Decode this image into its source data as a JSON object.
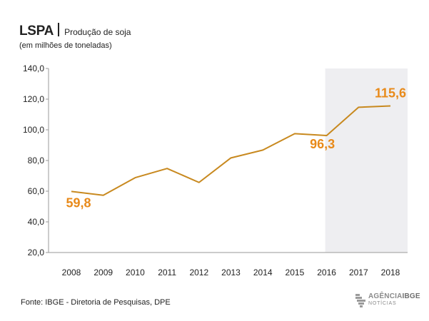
{
  "header": {
    "title": "LSPA",
    "subtitle": "Produção de soja",
    "unit": "(em milhões de toneladas)"
  },
  "footer": {
    "source": "Fonte: IBGE - Diretoria de Pesquisas, DPE"
  },
  "logo": {
    "name_light": "AGÊNCIA",
    "name_bold": "IBGE",
    "tagline": "NOTÍCIAS"
  },
  "colors": {
    "line": "#c8891f",
    "highlight_label": "#e88a1a",
    "highlight_band": "#eeeef1",
    "axis": "#999999"
  },
  "chart_data": {
    "type": "line",
    "categories": [
      "2008",
      "2009",
      "2010",
      "2011",
      "2012",
      "2013",
      "2014",
      "2015",
      "2016",
      "2017",
      "2018"
    ],
    "values": [
      59.8,
      57.3,
      68.8,
      74.8,
      65.7,
      81.7,
      86.8,
      97.5,
      96.3,
      114.7,
      115.6
    ],
    "y_ticks": [
      "20,0",
      "40,0",
      "60,0",
      "80,0",
      "100,0",
      "120,0",
      "140,0"
    ],
    "ylim": [
      20,
      140
    ],
    "grid": false,
    "highlight_range": [
      "2016",
      "2018"
    ],
    "data_labels": [
      {
        "category": "2008",
        "text": "59,8"
      },
      {
        "category": "2016",
        "text": "96,3"
      },
      {
        "category": "2018",
        "text": "115,6"
      }
    ]
  }
}
